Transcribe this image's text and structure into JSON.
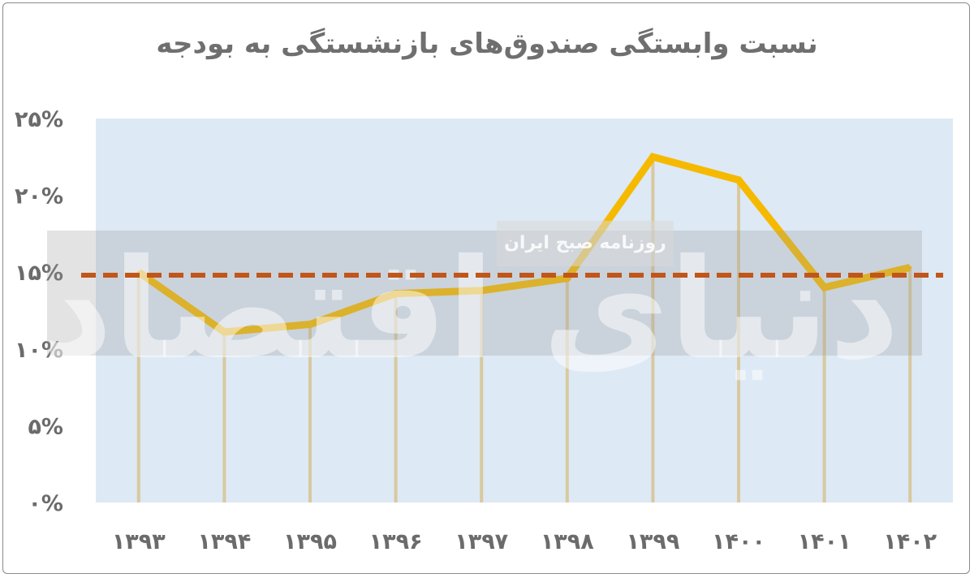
{
  "chart_data": {
    "type": "line",
    "title": "نسبت وابستگی صندوق‌های بازنشستگی به بودجه",
    "xlabel": "",
    "ylabel": "",
    "categories": [
      "۱۳۹۳",
      "۱۳۹۴",
      "۱۳۹۵",
      "۱۳۹۶",
      "۱۳۹۷",
      "۱۳۹۸",
      "۱۳۹۹",
      "۱۴۰۰",
      "۱۴۰۱",
      "۱۴۰۲"
    ],
    "y_tick_labels": [
      "۰%",
      "۵%",
      "۱۰%",
      "۱۵%",
      "۲۰%",
      "۲۵%"
    ],
    "y_ticks": [
      0,
      5,
      10,
      15,
      20,
      25
    ],
    "ylim": [
      0,
      25
    ],
    "series": [
      {
        "values": [
          15.0,
          11.1,
          11.6,
          13.6,
          13.8,
          14.6,
          22.5,
          21.0,
          14.0,
          15.3
        ],
        "color": "#F5BA00"
      }
    ],
    "reference_line": {
      "value": 14.8,
      "style": "dashed",
      "color": "#C0561A"
    },
    "grid": false,
    "legend": "none",
    "plot_background": "#DDE9F4",
    "drop_line_color": "#D8C9A0"
  },
  "watermark": {
    "brand": "دنیای اقتصاد",
    "caption": "روزنامه صبح ایران"
  }
}
